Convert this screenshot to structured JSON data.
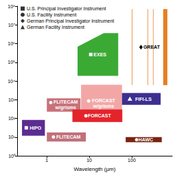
{
  "chart_data": {
    "type": "range",
    "xlabel": "Wavelength (μm)",
    "log": true,
    "grid": false,
    "legend": "upper left",
    "xlim": [
      0.2,
      900
    ],
    "ylim": [
      1,
      100000000
    ],
    "xticks": [
      1,
      10,
      100
    ],
    "yticks": [
      {
        "value": 1,
        "label": "10⁰"
      },
      {
        "value": 10,
        "label": "10¹"
      },
      {
        "value": 100,
        "label": "10²"
      },
      {
        "value": 1000,
        "label": "10³"
      },
      {
        "value": 10000,
        "label": "10⁴"
      },
      {
        "value": 100000,
        "label": "10⁵"
      },
      {
        "value": 1000000,
        "label": "10⁶"
      },
      {
        "value": 10000000,
        "label": "10⁷"
      },
      {
        "value": 100000000,
        "label": "10⁸"
      }
    ],
    "series": [
      {
        "name": "U.S. Principal Investigator Instrument",
        "marker": "square"
      },
      {
        "name": "U.S. Facility Instrument",
        "marker": "circle"
      },
      {
        "name": "German Principal Investigator Instrument",
        "marker": "diamond"
      },
      {
        "name": "German Facility Instrument",
        "marker": "triangle"
      }
    ],
    "instruments": [
      {
        "name": "HIPO",
        "marker": "square",
        "color": "#5c2d91",
        "x": [
          0.26,
          0.9
        ],
        "y": [
          12,
          83
        ]
      },
      {
        "name": "FLITECAM",
        "marker": "circle",
        "color": "#c0717a",
        "x": [
          1,
          8.3
        ],
        "y": [
          5.8,
          18
        ]
      },
      {
        "name": "FLITECAM w/grisms",
        "marker": "circle",
        "color": "#c8717a",
        "x": [
          1,
          6.2
        ],
        "y": [
          230,
          1200
        ]
      },
      {
        "name": "FORCAST w/grisms",
        "marker": "circle",
        "color": "#f2a7a6",
        "x": [
          6.4,
          59
        ],
        "y": [
          65,
          6300
        ]
      },
      {
        "name": "FORCAST",
        "marker": "circle",
        "color": "#e3242b",
        "x": [
          4,
          60
        ],
        "y": [
          64,
          300
        ]
      },
      {
        "name": "EXES",
        "marker": "square",
        "color": "#3aaa35",
        "points": [
          [
            5.3,
            19000
          ],
          [
            5.3,
            680000
          ],
          [
            22,
            3600000
          ],
          [
            48,
            3600000
          ],
          [
            48,
            19000
          ]
        ]
      },
      {
        "name": "FIFI-LS",
        "marker": "triangle",
        "color": "#3d2f90",
        "x": [
          59,
          480
        ],
        "y": [
          530,
          2300
        ]
      },
      {
        "name": "HAWC",
        "marker": "circle",
        "color": "#7a2410",
        "x": [
          72,
          510
        ],
        "y": [
          5.3,
          10
        ]
      },
      {
        "name": "GREAT",
        "marker": "diamond",
        "color": "#e67e22",
        "y": [
          6000,
          70000000
        ],
        "bands": [
          [
            100,
            103
          ],
          [
            235,
            242
          ],
          [
            316,
            325
          ],
          [
            550,
            690
          ]
        ]
      }
    ]
  }
}
